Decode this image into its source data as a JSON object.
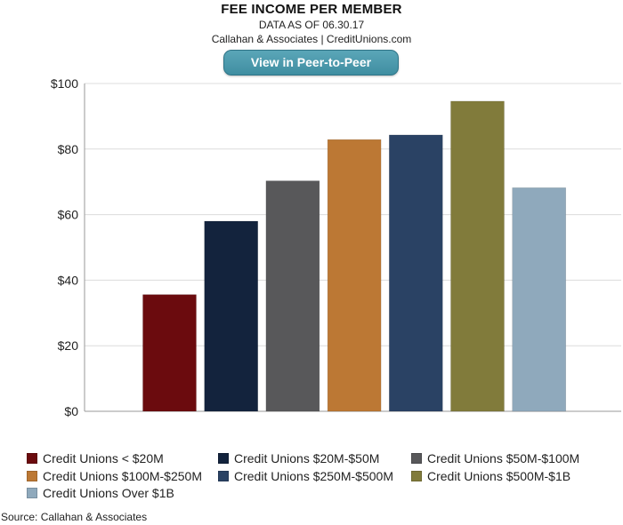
{
  "header": {
    "title": "FEE INCOME PER MEMBER",
    "subtitle": "DATA AS OF 06.30.17",
    "credit": "Callahan & Associates | CreditUnions.com",
    "button_label": "View in Peer-to-Peer"
  },
  "chart_data": {
    "type": "bar",
    "title": "FEE INCOME PER MEMBER",
    "xlabel": "",
    "ylabel": "",
    "ylim": [
      0,
      100
    ],
    "yticks": [
      0,
      20,
      40,
      60,
      80,
      100
    ],
    "ytick_labels": [
      "$0",
      "$20",
      "$40",
      "$60",
      "$80",
      "$100"
    ],
    "grid": "horizontal",
    "legend_position": "bottom",
    "categories": [
      "Credit Unions < $20M",
      "Credit Unions $20M-$50M",
      "Credit Unions $50M-$100M",
      "Credit Unions $100M-$250M",
      "Credit Unions $250M-$500M",
      "Credit Unions $500M-$1B",
      "Credit Unions Over $1B"
    ],
    "values": [
      35.6,
      58.0,
      70.3,
      82.9,
      84.3,
      94.6,
      68.2
    ],
    "colors": [
      "#6b0b0e",
      "#13233d",
      "#58585a",
      "#bc7834",
      "#2a4264",
      "#817b3b",
      "#8fa9bc"
    ]
  },
  "source": "Source: Callahan & Associates"
}
